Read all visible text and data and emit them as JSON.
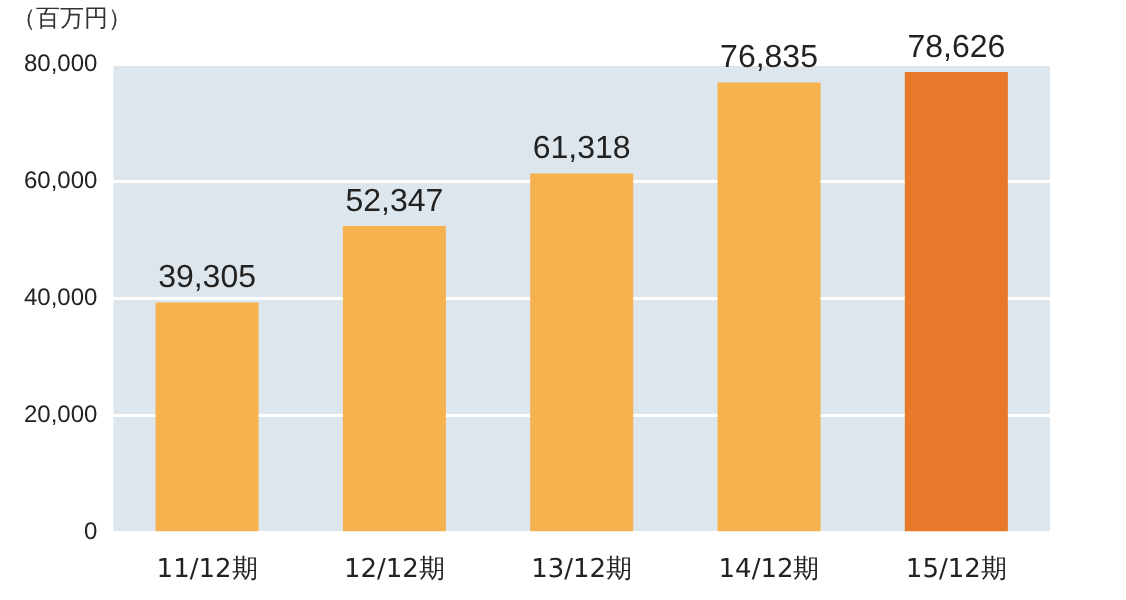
{
  "chart_data": {
    "type": "bar",
    "ylabel": "（百万円）",
    "categories": [
      "11/12期",
      "12/12期",
      "13/12期",
      "14/12期",
      "15/12期"
    ],
    "values": [
      39305,
      52347,
      61318,
      76835,
      78626
    ],
    "colors": [
      "#f6b24e",
      "#f6b24e",
      "#f6b24e",
      "#f6b24e",
      "#e8782a"
    ],
    "value_labels": [
      "39,305",
      "52,347",
      "61,318",
      "76,835",
      "78,626"
    ],
    "ylim": [
      0,
      80000
    ],
    "yticks": [
      0,
      {
        "value": 20000,
        "label": "20,000"
      },
      {
        "value": 40000,
        "label": "40,000"
      },
      {
        "value": 60000,
        "label": "60,000"
      },
      {
        "value": 80000,
        "label": "80,000"
      }
    ],
    "grid": "y",
    "legend": false
  }
}
